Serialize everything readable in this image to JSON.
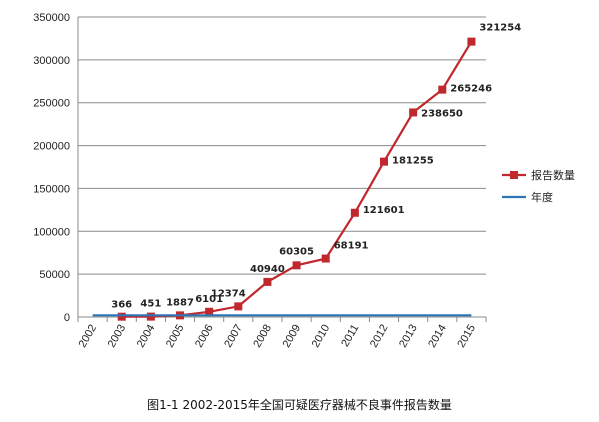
{
  "chart_data": {
    "type": "line",
    "categories": [
      "2002",
      "2003",
      "2004",
      "2005",
      "2006",
      "2007",
      "2008",
      "2009",
      "2010",
      "2011",
      "2012",
      "2013",
      "2014",
      "2015"
    ],
    "series": [
      {
        "name": "报告数量",
        "color": "#c0282e",
        "marker": "square",
        "values": [
          null,
          366,
          451,
          1887,
          6101,
          12374,
          40940,
          60305,
          68191,
          121601,
          181255,
          238650,
          265246,
          321254
        ],
        "labels": [
          "",
          "366",
          "451",
          "1887",
          "6101",
          "12374",
          "40940",
          "60305",
          "68191",
          "121601",
          "181255",
          "238650",
          "265246",
          "321254"
        ]
      },
      {
        "name": "年度",
        "color": "#2e75b6",
        "marker": "none",
        "values": [
          2002,
          2003,
          2004,
          2005,
          2006,
          2007,
          2008,
          2009,
          2010,
          2011,
          2012,
          2013,
          2014,
          2015
        ]
      }
    ],
    "ylim": [
      0,
      350000
    ],
    "yticks": [
      "0",
      "50000",
      "100000",
      "150000",
      "200000",
      "250000",
      "300000",
      "350000"
    ],
    "grid": true,
    "legend": "right"
  },
  "caption": "图1-1 2002-2015年全国可疑医疗器械不良事件报告数量"
}
